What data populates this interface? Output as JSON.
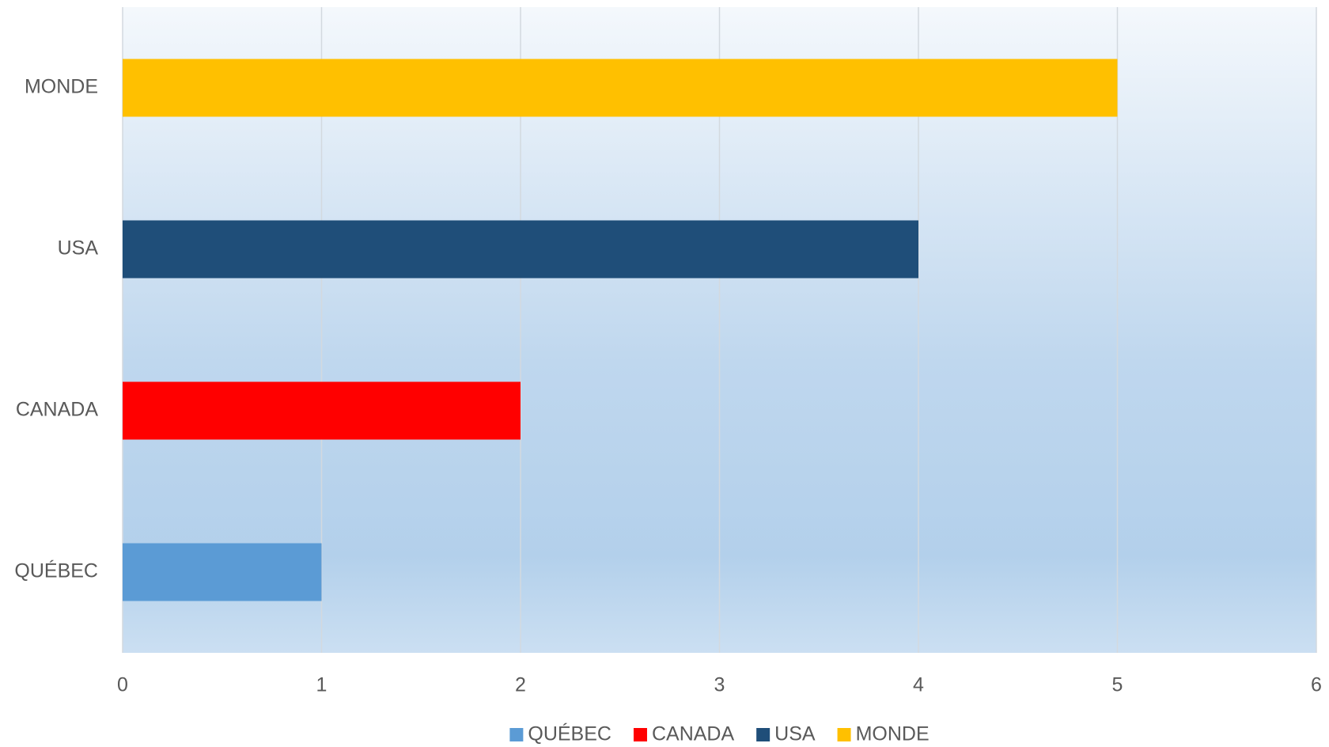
{
  "chart_data": {
    "type": "bar",
    "orientation": "horizontal",
    "categories": [
      "QUÉBEC",
      "CANADA",
      "USA",
      "MONDE"
    ],
    "values": [
      1,
      2,
      4,
      5
    ],
    "colors": [
      "#5b9bd5",
      "#ff0000",
      "#1f4e79",
      "#ffc000"
    ],
    "xlim": [
      0,
      6
    ],
    "xticks": [
      0,
      1,
      2,
      3,
      4,
      5,
      6
    ],
    "grid": true,
    "legend": "bottom"
  }
}
